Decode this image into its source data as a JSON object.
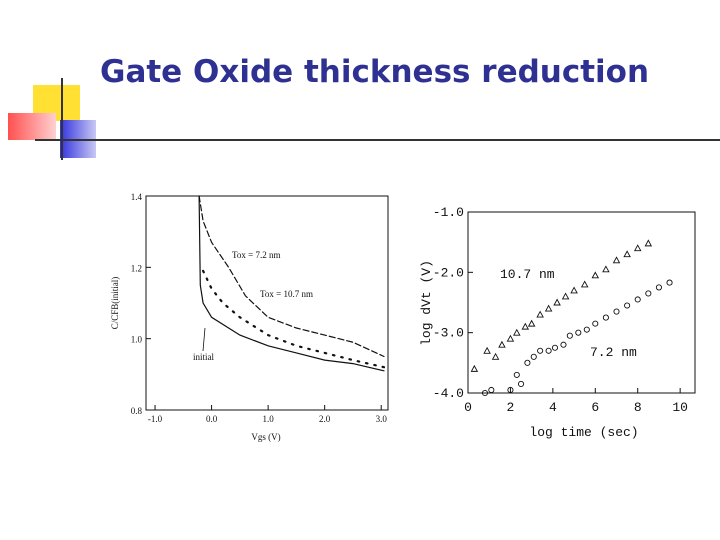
{
  "title": "Gate Oxide thickness reduction",
  "chart_data": [
    {
      "type": "line",
      "xlabel": "Vgs (V)",
      "ylabel": "C/CFB(initial)",
      "xlim": [
        -1.16,
        3.12
      ],
      "ylim": [
        0.8,
        1.4
      ],
      "xticks": [
        {
          "value": -1,
          "label": "-1.0"
        },
        {
          "value": 0,
          "label": "0.0"
        },
        {
          "value": 1,
          "label": "1.0"
        },
        {
          "value": 2,
          "label": "2.0"
        },
        {
          "value": 3,
          "label": "3.0"
        }
      ],
      "yticks": [
        0.8,
        {
          "value": 1,
          "label": "1.0"
        },
        1.2,
        1.4
      ],
      "series": [
        {
          "name": "initial",
          "style": "solid",
          "color": "#111111",
          "x": [
            -0.22,
            -0.2,
            -0.15,
            0,
            0.5,
            1,
            1.5,
            2,
            2.5,
            3.05
          ],
          "values": [
            1.4,
            1.15,
            1.1,
            1.06,
            1.01,
            0.98,
            0.96,
            0.94,
            0.93,
            0.91
          ]
        },
        {
          "name": "Tox = 7.2 nm",
          "style": "dashed",
          "color": "#111111",
          "x": [
            -0.22,
            -0.15,
            0,
            0.3,
            0.6,
            1,
            1.5,
            2,
            2.5,
            3.05
          ],
          "values": [
            1.4,
            1.33,
            1.27,
            1.2,
            1.12,
            1.06,
            1.03,
            1.01,
            0.99,
            0.95
          ]
        },
        {
          "name": "Tox = 10.7 nm",
          "style": "dotted",
          "color": "#111111",
          "x": [
            -0.15,
            0,
            0.2,
            0.5,
            0.8,
            1,
            1.5,
            2,
            2.5,
            3.05
          ],
          "values": [
            1.19,
            1.14,
            1.1,
            1.06,
            1.03,
            1.01,
            0.98,
            0.96,
            0.94,
            0.92
          ]
        }
      ]
    },
    {
      "type": "scatter",
      "xlabel": "log time (sec)",
      "ylabel": "log dVt (V)",
      "xlim": [
        0,
        10.7
      ],
      "ylim": [
        -4,
        -1
      ],
      "xticks": [
        0,
        2,
        4,
        6,
        8,
        10
      ],
      "yticks": [
        {
          "value": -1,
          "label": "-1.0"
        },
        {
          "value": -2,
          "label": "-2.0"
        },
        {
          "value": -3,
          "label": "-3.0"
        },
        {
          "value": -4,
          "label": "-4.0"
        }
      ],
      "series": [
        {
          "name": "10.7 nm",
          "marker": "triangle",
          "color": "#111111",
          "x": [
            0.3,
            0.9,
            1.3,
            1.6,
            2,
            2.3,
            2.7,
            3,
            3.4,
            3.8,
            4.2,
            4.6,
            5,
            5.5,
            6,
            6.5,
            7,
            7.5,
            8,
            8.5
          ],
          "values": [
            -3.6,
            -3.3,
            -3.4,
            -3.2,
            -3.1,
            -3.0,
            -2.9,
            -2.85,
            -2.7,
            -2.6,
            -2.5,
            -2.4,
            -2.3,
            -2.2,
            -2.05,
            -1.95,
            -1.8,
            -1.7,
            -1.6,
            -1.52
          ]
        },
        {
          "name": "7.2 nm",
          "marker": "circle",
          "color": "#111111",
          "x": [
            0.8,
            1.1,
            2,
            2.3,
            2.5,
            2.8,
            3.1,
            3.4,
            3.8,
            4.1,
            4.5,
            4.8,
            5.2,
            5.6,
            6,
            6.5,
            7,
            7.5,
            8,
            8.5,
            9,
            9.5
          ],
          "values": [
            -4.0,
            -3.95,
            -3.95,
            -3.7,
            -3.85,
            -3.5,
            -3.4,
            -3.3,
            -3.3,
            -3.25,
            -3.2,
            -3.05,
            -3.0,
            -2.95,
            -2.85,
            -2.75,
            -2.65,
            -2.55,
            -2.45,
            -2.35,
            -2.25,
            -2.17
          ]
        }
      ]
    }
  ]
}
